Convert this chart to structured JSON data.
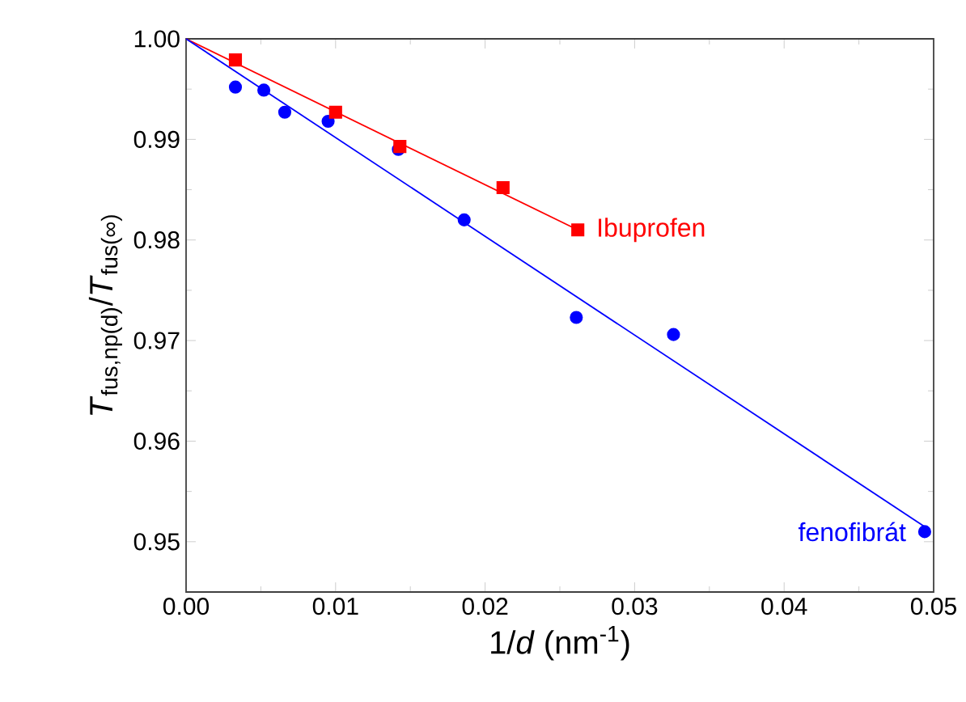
{
  "chart_data": {
    "type": "scatter",
    "xlabel": "1/*d* (nm$^{-1}$)",
    "ylabel": "*T*$_{fus,np(d)}$/*T*$_{fus(∞)}$",
    "xlim": [
      0,
      0.05
    ],
    "ylim": [
      0.945,
      1.0
    ],
    "xticks": [
      {
        "value": 0,
        "label": "0.00"
      },
      0.01,
      0.02,
      0.03,
      0.04,
      0.05
    ],
    "yticks": [
      0.95,
      0.96,
      0.97,
      0.98,
      0.99,
      {
        "value": 1,
        "label": "1.00"
      }
    ],
    "grid": false,
    "legend": false,
    "series": [
      {
        "type": "line",
        "color": "#ff0000",
        "marker": "none",
        "x": [
          0,
          0.0262
        ],
        "values": [
          1.0,
          0.981
        ]
      },
      {
        "type": "line",
        "color": "#0000ff",
        "marker": "none",
        "x": [
          0,
          0.0494
        ],
        "values": [
          1.0,
          0.9515
        ]
      },
      {
        "name": "fenofibrát",
        "color": "#0000ff",
        "marker": "circle",
        "x": [
          0.0033,
          0.0052,
          0.0066,
          0.0095,
          0.0142,
          0.0186,
          0.0261,
          0.0326,
          0.0494
        ],
        "values": [
          0.9952,
          0.9949,
          0.9927,
          0.9918,
          0.989,
          0.982,
          0.9723,
          0.9706,
          0.951
        ]
      },
      {
        "name": "Ibuprofen",
        "color": "#ff0000",
        "marker": "square",
        "x": [
          0.0033,
          0.01,
          0.0143,
          0.0212,
          0.0262
        ],
        "values": [
          0.9979,
          0.9927,
          0.9893,
          0.9852,
          0.981
        ]
      }
    ]
  }
}
